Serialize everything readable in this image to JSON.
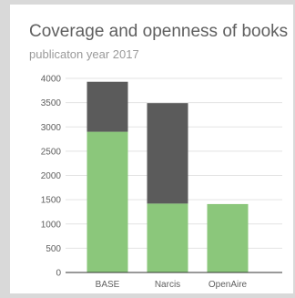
{
  "chart_data": {
    "type": "bar",
    "stacked": true,
    "title": "Coverage and openness of books",
    "subtitle": "publicaton year 2017",
    "categories": [
      "BASE",
      "Narcis",
      "OpenAire"
    ],
    "series": [
      {
        "values": [
          2900,
          1420,
          1410
        ],
        "color": "#8bc77b"
      },
      {
        "values": [
          1030,
          2070,
          0
        ],
        "color": "#5b5b5b"
      }
    ],
    "ylim": [
      0,
      4000
    ],
    "yticks": [
      0,
      500,
      1000,
      1500,
      2000,
      2500,
      3000,
      3500,
      4000
    ],
    "grid": true,
    "legend": "none"
  }
}
